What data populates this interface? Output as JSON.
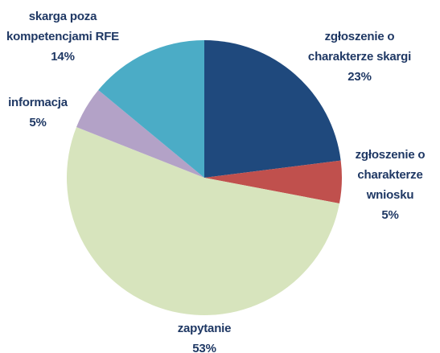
{
  "chart_data": {
    "type": "pie",
    "categories": [
      "zgłoszenie o charakterze skargi",
      "zgłoszenie o charakterze wniosku",
      "zapytanie",
      "informacja",
      "skarga poza kompetencjami RFE"
    ],
    "values": [
      23,
      5,
      53,
      5,
      14
    ],
    "value_labels": [
      "23%",
      "5%",
      "53%",
      "5%",
      "14%"
    ],
    "colors": [
      "#1f497d",
      "#c0504d",
      "#d7e4bd",
      "#b3a2c7",
      "#4bacc6"
    ]
  }
}
